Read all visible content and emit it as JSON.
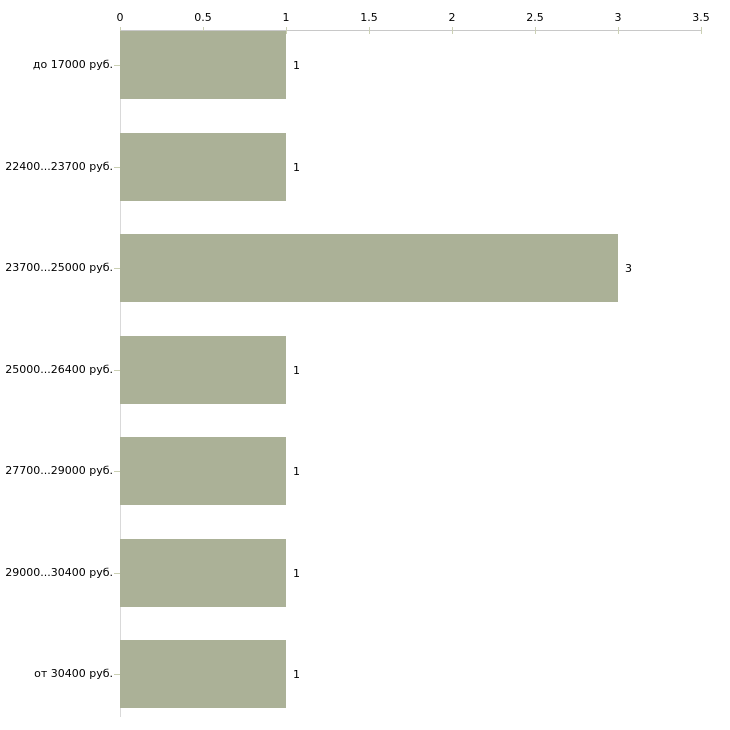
{
  "chart_data": {
    "type": "bar",
    "orientation": "horizontal",
    "title": "",
    "xlabel": "",
    "ylabel": "",
    "categories": [
      "до 17000 руб.",
      "22400...23700 руб.",
      "23700...25000 руб.",
      "25000...26400 руб.",
      "27700...29000 руб.",
      "29000...30400 руб.",
      "от 30400 руб."
    ],
    "values": [
      1,
      1,
      3,
      1,
      1,
      1,
      1
    ],
    "value_labels": [
      "1",
      "1",
      "3",
      "1",
      "1",
      "1",
      "1"
    ],
    "xlim": [
      0,
      3.5
    ],
    "x_ticks": [
      0,
      0.5,
      1,
      1.5,
      2,
      2.5,
      3,
      3.5
    ],
    "x_tick_labels": [
      "0",
      "0.5",
      "1",
      "1.5",
      "2",
      "2.5",
      "3",
      "3.5"
    ],
    "grid": false,
    "legend": false,
    "colors": {
      "bar": "#abb197",
      "x_axis_line": "#c8c8c8",
      "y_axis_line": "#d9d9d9",
      "tick_mark": "#cbd0b4",
      "text": "#000000",
      "background": "#ffffff"
    }
  }
}
